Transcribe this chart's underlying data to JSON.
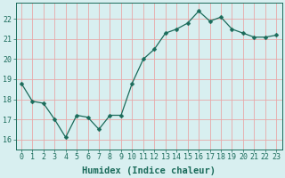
{
  "x": [
    0,
    1,
    2,
    3,
    4,
    5,
    6,
    7,
    8,
    9,
    10,
    11,
    12,
    13,
    14,
    15,
    16,
    17,
    18,
    19,
    20,
    21,
    22,
    23
  ],
  "y": [
    18.8,
    17.9,
    17.8,
    17.0,
    16.1,
    17.2,
    17.1,
    16.5,
    17.2,
    17.2,
    18.8,
    20.0,
    20.5,
    21.3,
    21.5,
    21.8,
    22.4,
    21.9,
    22.1,
    21.5,
    21.3,
    21.1,
    21.1,
    21.2
  ],
  "line_color": "#1a6b5a",
  "marker": "D",
  "marker_size": 2.5,
  "bg_color": "#d8eff0",
  "grid_color": "#e8a8a8",
  "xlabel": "Humidex (Indice chaleur)",
  "ylim": [
    15.5,
    22.8
  ],
  "xlim": [
    -0.5,
    23.5
  ],
  "yticks": [
    16,
    17,
    18,
    19,
    20,
    21,
    22
  ],
  "xticks": [
    0,
    1,
    2,
    3,
    4,
    5,
    6,
    7,
    8,
    9,
    10,
    11,
    12,
    13,
    14,
    15,
    16,
    17,
    18,
    19,
    20,
    21,
    22,
    23
  ],
  "xlabel_fontsize": 7.5,
  "tick_fontsize": 6,
  "axis_color": "#1a6b5a"
}
